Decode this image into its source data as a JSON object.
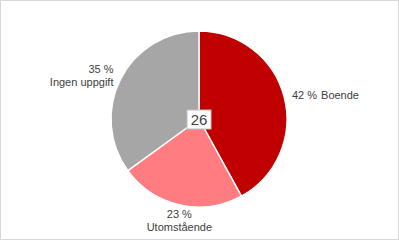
{
  "chart_data": {
    "type": "pie",
    "categories": [
      "Boende",
      "Utomstående",
      "Ingen uppgift"
    ],
    "values": [
      42,
      23,
      35
    ],
    "value_labels": [
      "42 %",
      "23 %",
      "35 %"
    ],
    "colors": [
      "#c00000",
      "#ff7c80",
      "#a6a6a6"
    ],
    "data_labels": true,
    "annotations": [
      "26"
    ]
  }
}
